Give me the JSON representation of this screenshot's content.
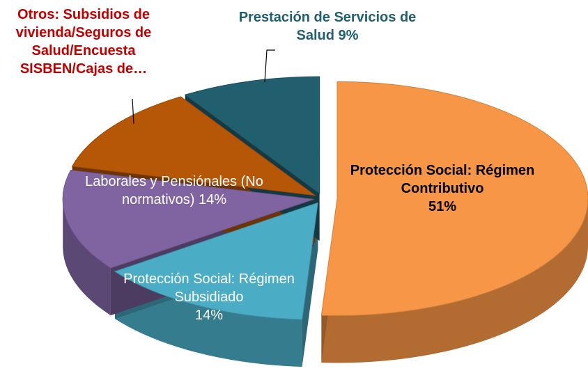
{
  "chart_data": {
    "type": "pie",
    "categories": [
      "Protección Social: Régimen Contributivo",
      "Protección Social: Régimen Subsidiado",
      "Laborales y Pensiónales (No normativos)",
      "Otros: Subsidios de vivienda/Seguros de Salud/Encuesta SISBEN/Cajas de…",
      "Prestación de Servicios de Salud"
    ],
    "values": [
      51,
      14,
      14,
      12,
      9
    ],
    "value_labels": [
      "51%",
      "14%",
      "14%",
      null,
      "9%"
    ],
    "colors": [
      "#f79646",
      "#4bacc6",
      "#8064a2",
      "#b65708",
      "#215f6e"
    ]
  }
}
